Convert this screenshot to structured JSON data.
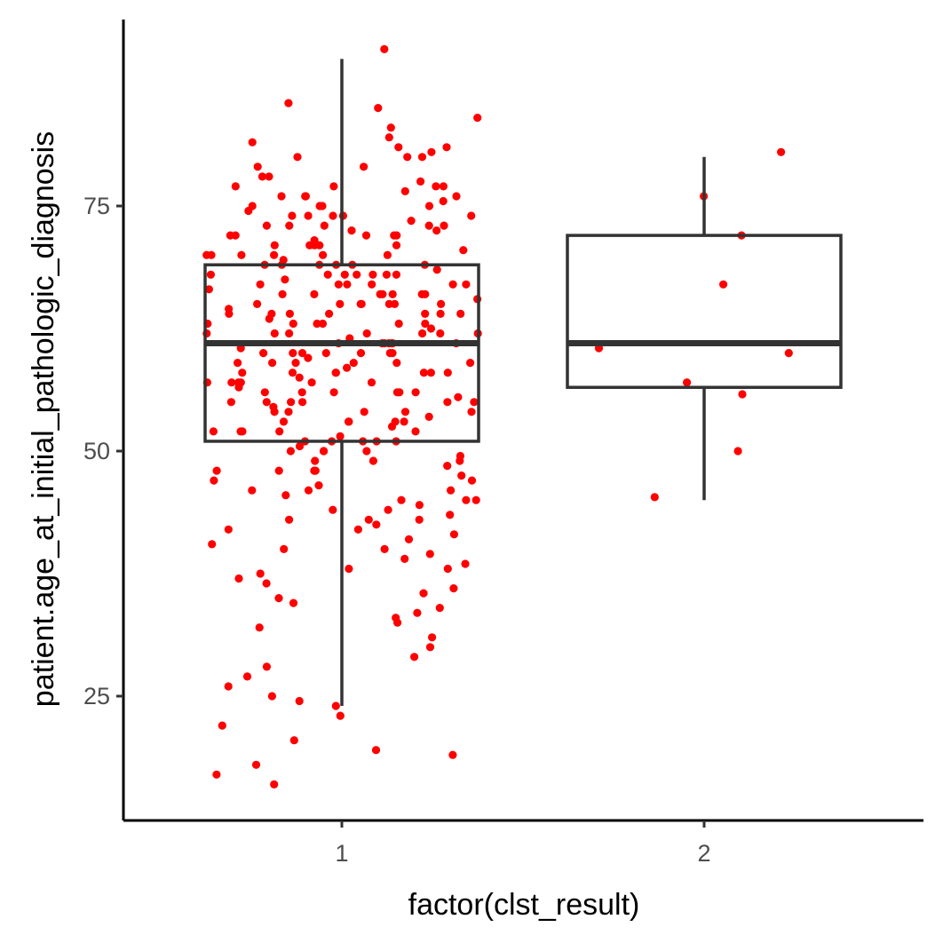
{
  "chart_data": {
    "type": "boxplot",
    "xlabel": "factor(clst_result)",
    "ylabel": "patient.age_at_initial_pathologic_diagnosis",
    "categories": [
      "1",
      "2"
    ],
    "y_ticks": [
      25,
      50,
      75
    ],
    "ylim": [
      12.5,
      94
    ],
    "grid": false,
    "point_color": "#ff0000",
    "box_color": "#333333",
    "boxes": [
      {
        "category": "1",
        "whisker_low": 24,
        "q1": 51,
        "median": 61,
        "q3": 69,
        "whisker_high": 90
      },
      {
        "category": "2",
        "whisker_low": 45,
        "q1": 56.5,
        "median": 61,
        "q3": 72,
        "whisker_high": 80
      }
    ],
    "points": [
      {
        "category": "1",
        "values": [
          91,
          85.5,
          85,
          84,
          83,
          82,
          81.5,
          81,
          81,
          80.5,
          80,
          80,
          80,
          79,
          79,
          78,
          78,
          77.5,
          77,
          77,
          77,
          77,
          76.5,
          76,
          76,
          76,
          76,
          75.5,
          75,
          75,
          75,
          75,
          74.5,
          74,
          74,
          74,
          74,
          74,
          73.5,
          73,
          73,
          73,
          73,
          73,
          72.5,
          72.5,
          72,
          72,
          72,
          72,
          72,
          71.5,
          71,
          71,
          71,
          71,
          71,
          70.5,
          70,
          70,
          70,
          70,
          70,
          70,
          69.5,
          69,
          69,
          69,
          69,
          69,
          69,
          68.5,
          68,
          68,
          68,
          68,
          68,
          68,
          68,
          67.5,
          67,
          67,
          67,
          67,
          67,
          67,
          66.5,
          66,
          66,
          66,
          66,
          66,
          66,
          66,
          65.5,
          65,
          65,
          65,
          65,
          65,
          65,
          65,
          64.5,
          64,
          64,
          64,
          64,
          64,
          64,
          64,
          63.5,
          63,
          63,
          63,
          63,
          63,
          63,
          62.5,
          62,
          62,
          62,
          62,
          62,
          62,
          62,
          61.5,
          61,
          61,
          61,
          61,
          61,
          61,
          61,
          60.5,
          60,
          60,
          60,
          60,
          60,
          60,
          60,
          59.5,
          59,
          59,
          59,
          59,
          59,
          59,
          58.5,
          58,
          58,
          58,
          58,
          58,
          58,
          58,
          57.5,
          57,
          57,
          57,
          57,
          57,
          57,
          56.5,
          56,
          56,
          56,
          56,
          56,
          56,
          55.5,
          55,
          55,
          55,
          55,
          55,
          55,
          54.5,
          54,
          54,
          54,
          54,
          54,
          53.5,
          53,
          53,
          53,
          53,
          53,
          52.5,
          52,
          52,
          52,
          52,
          52,
          51.5,
          51,
          51,
          51,
          51,
          51,
          50.5,
          50,
          50,
          50,
          50,
          49.5,
          49,
          49,
          49,
          48.5,
          48,
          48,
          48,
          48,
          47.5,
          47,
          47,
          46.5,
          46,
          46,
          46,
          45.5,
          45,
          45,
          45,
          44.5,
          44,
          44,
          43.5,
          43,
          43,
          43,
          42.5,
          42,
          42,
          41.5,
          41,
          40.5,
          40,
          40,
          39.5,
          39,
          38.5,
          38,
          38,
          37.5,
          37,
          36.5,
          36,
          35.5,
          35,
          34.5,
          34,
          33.5,
          33,
          32.5,
          32,
          31,
          30,
          29,
          28,
          27,
          26,
          25,
          24.5,
          24,
          23,
          22,
          20.5,
          19.5,
          19,
          18,
          17,
          16
        ]
      },
      {
        "category": "2",
        "values": [
          80.5,
          76,
          72,
          67,
          60.5,
          60,
          57,
          55.8,
          50,
          45.3
        ]
      }
    ]
  }
}
